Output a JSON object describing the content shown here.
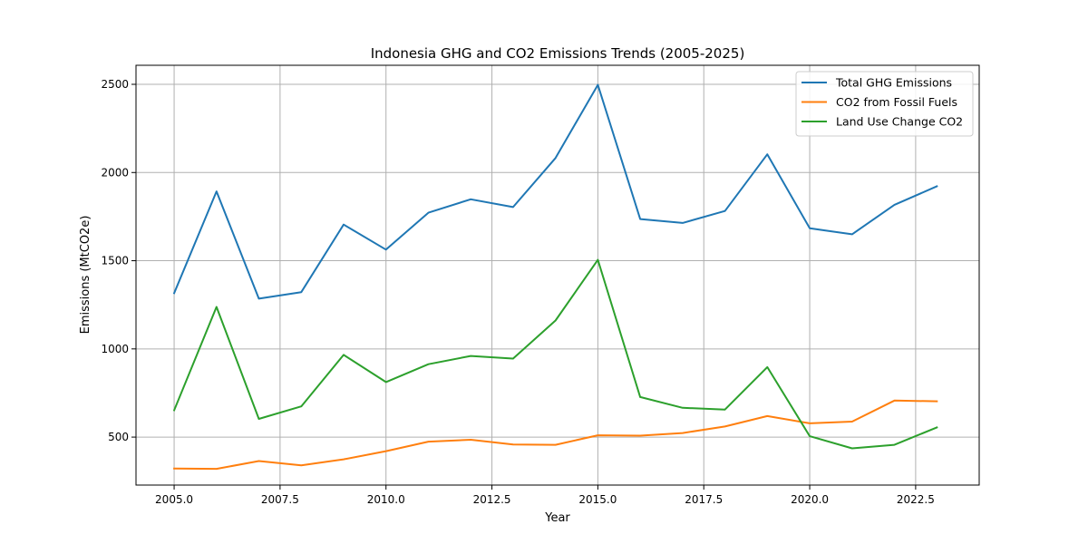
{
  "chart_data": {
    "type": "line",
    "title": "Indonesia GHG and CO2 Emissions Trends (2005-2025)",
    "xlabel": "Year",
    "ylabel": "Emissions (MtCO2e)",
    "xlim": [
      2004.1,
      2024.0
    ],
    "ylim": [
      228,
      2608
    ],
    "xticks": [
      2005.0,
      2007.5,
      2010.0,
      2012.5,
      2015.0,
      2017.5,
      2020.0,
      2022.5
    ],
    "xtick_labels": [
      "2005.0",
      "2007.5",
      "2010.0",
      "2012.5",
      "2015.0",
      "2017.5",
      "2020.0",
      "2022.5"
    ],
    "yticks": [
      500,
      1000,
      1500,
      2000,
      2500
    ],
    "ytick_labels": [
      "500",
      "1000",
      "1500",
      "2000",
      "2500"
    ],
    "grid": true,
    "legend_position": "top-right",
    "x": [
      2005,
      2006,
      2007,
      2008,
      2009,
      2010,
      2011,
      2012,
      2013,
      2014,
      2015,
      2016,
      2017,
      2018,
      2019,
      2020,
      2021,
      2022,
      2023
    ],
    "series": [
      {
        "name": "Total GHG Emissions",
        "color": "#1f77b4",
        "values": [
          1316,
          1893,
          1285,
          1322,
          1705,
          1563,
          1772,
          1848,
          1804,
          2082,
          2497,
          1736,
          1714,
          1782,
          2103,
          1684,
          1650,
          1817,
          1922
        ]
      },
      {
        "name": "CO2 from Fossil Fuels",
        "color": "#ff7f0e",
        "values": [
          322,
          320,
          364,
          340,
          374,
          420,
          474,
          485,
          458,
          456,
          510,
          508,
          523,
          560,
          619,
          578,
          588,
          707,
          703
        ]
      },
      {
        "name": "Land Use Change CO2",
        "color": "#2ca02c",
        "values": [
          652,
          1238,
          603,
          674,
          966,
          812,
          913,
          960,
          945,
          1161,
          1505,
          727,
          666,
          656,
          897,
          505,
          436,
          456,
          555
        ]
      }
    ]
  }
}
